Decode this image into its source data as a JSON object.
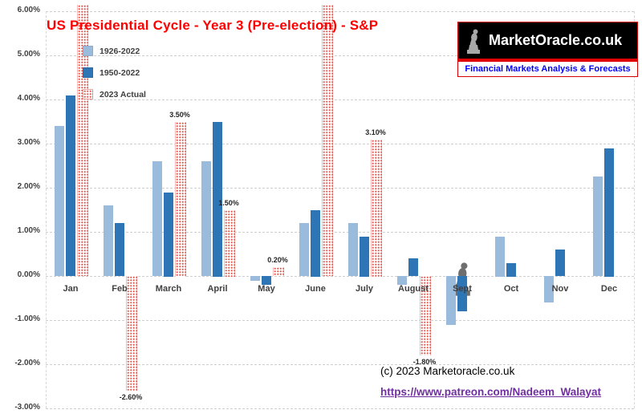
{
  "title": "US Presidential Cycle - Year 3 (Pre-election) - S&P",
  "title_color": "#ff0000",
  "legend": [
    {
      "label": "1926-2022",
      "color": "#9bbbdc",
      "pattern": "solid"
    },
    {
      "label": "1950-2022",
      "color": "#2e75b6",
      "pattern": "solid"
    },
    {
      "label": "2023 Actual",
      "color": "#e4564d",
      "pattern": "dotted"
    }
  ],
  "chart_data": {
    "type": "bar",
    "title": "US Presidential Cycle - Year 3 (Pre-election) - S&P",
    "categories": [
      "Jan",
      "Feb",
      "March",
      "April",
      "May",
      "June",
      "July",
      "August",
      "Sept",
      "Oct",
      "Nov",
      "Dec"
    ],
    "series": [
      {
        "name": "1926-2022",
        "color": "#9bbbdc",
        "pattern": "solid",
        "values": [
          3.4,
          1.6,
          2.6,
          2.6,
          -0.1,
          1.2,
          1.2,
          -0.2,
          -1.1,
          0.9,
          -0.6,
          2.25
        ]
      },
      {
        "name": "1950-2022",
        "color": "#2e75b6",
        "pattern": "solid",
        "values": [
          4.1,
          1.2,
          1.9,
          3.5,
          -0.2,
          1.5,
          0.9,
          0.4,
          -0.8,
          0.3,
          0.6,
          2.9
        ]
      },
      {
        "name": "2023 Actual",
        "color": "#e4564d",
        "pattern": "dotted",
        "values": [
          6.2,
          -2.6,
          3.5,
          1.5,
          0.2,
          6.5,
          3.1,
          -1.8,
          null,
          null,
          null,
          null
        ],
        "labels": [
          null,
          "-2.60%",
          "3.50%",
          "1.50%",
          "0.20%",
          null,
          "3.10%",
          "-1.80%",
          null,
          null,
          null,
          null
        ],
        "clipped_above_top": [
          "Jan",
          "June"
        ]
      }
    ],
    "ylim": [
      -3,
      6
    ],
    "ytick_step": 1,
    "yticks": [
      "6.00%",
      "5.00%",
      "4.00%",
      "3.00%",
      "2.00%",
      "1.00%",
      "0.00%",
      "-1.00%",
      "-2.00%",
      "-3.00%"
    ],
    "xlabel": "",
    "ylabel": "",
    "grid": "dashed-horizontal",
    "legend_position": "top-left"
  },
  "logo": {
    "name": "MarketOracle.co.uk",
    "tagline": "Financial Markets Analysis & Forecasts",
    "statue_icon": "thinker-statue-icon"
  },
  "footer": {
    "copyright": "(c) 2023 Marketoracle.co.uk",
    "link": "https://www.patreon.com/Nadeem_Walayat"
  }
}
